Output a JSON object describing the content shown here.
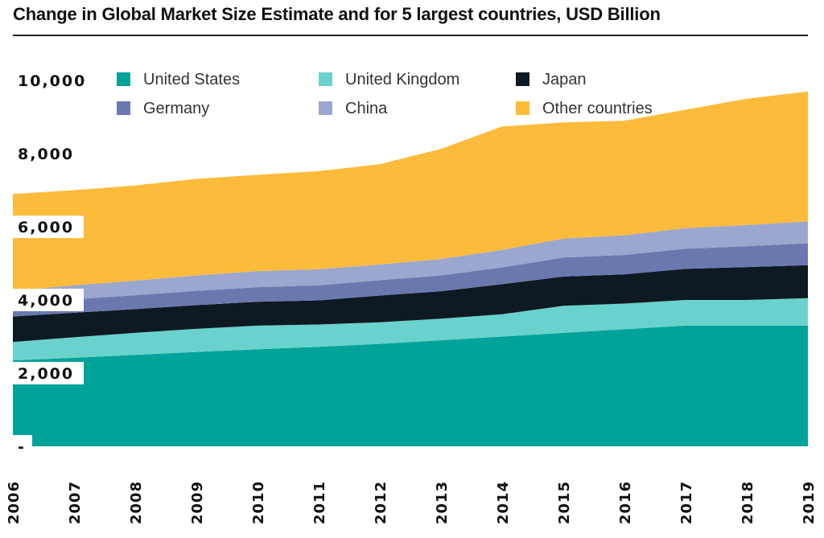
{
  "chart_data": {
    "type": "area",
    "stacked": true,
    "title": "Change in Global Market Size Estimate and for 5 largest countries, USD Billion",
    "x": [
      "2006",
      "2007",
      "2008",
      "2009",
      "2010",
      "2011",
      "2012",
      "2013",
      "2014",
      "2015",
      "2016",
      "2017",
      "2018",
      "2019"
    ],
    "ylim": [
      0,
      10000
    ],
    "yticks": [
      "-",
      "2,000",
      "4,000",
      "6,000",
      "8,000",
      "10,000"
    ],
    "ytick_values": [
      0,
      2000,
      4000,
      6000,
      8000,
      10000
    ],
    "legend_position": "top-left",
    "grid": false,
    "series": [
      {
        "name": "United States",
        "color": "#00a39a",
        "values": [
          2350,
          2420,
          2500,
          2580,
          2650,
          2720,
          2800,
          2900,
          3000,
          3100,
          3200,
          3300,
          3300,
          3300
        ]
      },
      {
        "name": "United Kingdom",
        "color": "#6ad2cc",
        "values": [
          500,
          560,
          600,
          630,
          650,
          610,
          590,
          590,
          610,
          740,
          700,
          700,
          700,
          750
        ]
      },
      {
        "name": "Japan",
        "color": "#0e1a22",
        "values": [
          700,
          670,
          650,
          650,
          650,
          660,
          730,
          750,
          820,
          800,
          800,
          850,
          900,
          900
        ]
      },
      {
        "name": "Germany",
        "color": "#6b78b0",
        "values": [
          350,
          370,
          380,
          390,
          400,
          410,
          420,
          430,
          460,
          520,
          530,
          550,
          570,
          600
        ]
      },
      {
        "name": "China",
        "color": "#9ba7cf",
        "values": [
          350,
          380,
          400,
          420,
          440,
          440,
          430,
          450,
          480,
          520,
          540,
          560,
          580,
          600
        ]
      },
      {
        "name": "Other countries",
        "color": "#fdbb3b",
        "values": [
          2650,
          2600,
          2600,
          2640,
          2630,
          2680,
          2740,
          3010,
          3370,
          3170,
          3130,
          3240,
          3450,
          3550
        ]
      }
    ]
  }
}
